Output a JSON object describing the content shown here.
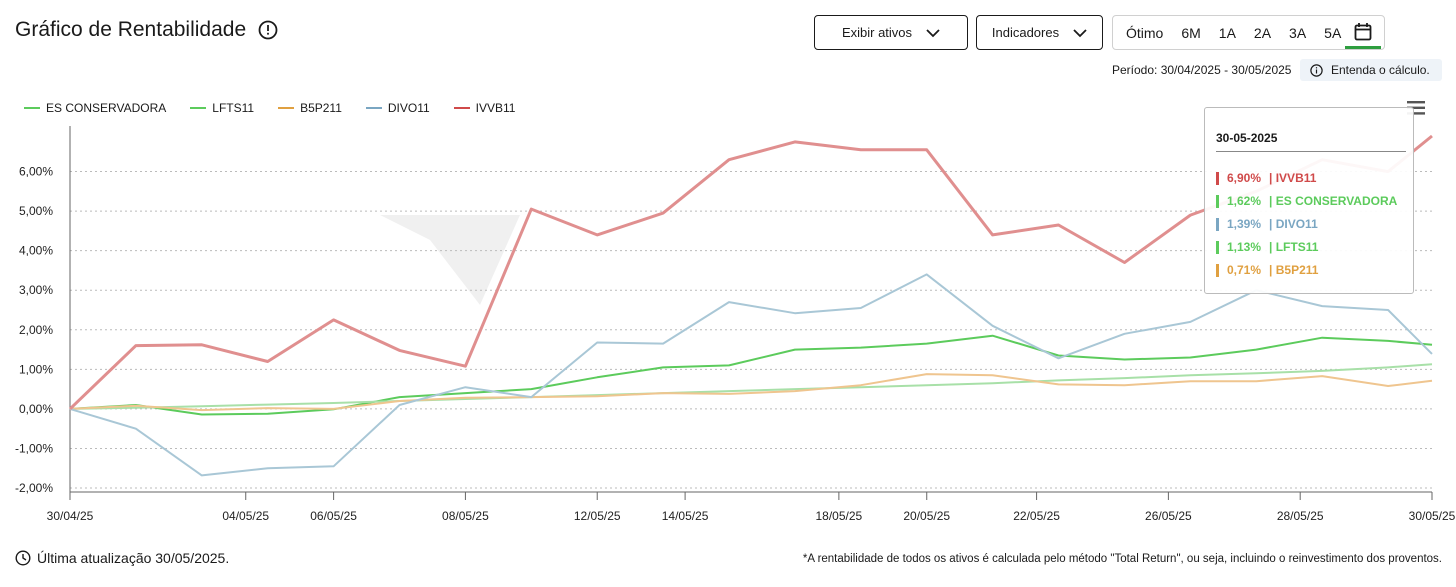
{
  "header": {
    "title": "Gráfico de Rentabilidade",
    "btn_assets": "Exibir ativos",
    "btn_indicators": "Indicadores",
    "periods": [
      "Ótimo",
      "6M",
      "1A",
      "2A",
      "3A",
      "5A"
    ],
    "period_label": "Período: 30/04/2025 - 30/05/2025",
    "explain": "Entenda o cálculo."
  },
  "footer": {
    "updated": "Última atualização 30/05/2025.",
    "note": "*A rentabilidade de todos os ativos é calculada pelo método \"Total Return\", ou seja, incluindo o reinvestimento dos proventos."
  },
  "tooltip": {
    "date": "30-05-2025",
    "rows": [
      {
        "value": "6,90%",
        "name": "| IVVB11",
        "color": "#d04a4a"
      },
      {
        "value": "1,62%",
        "name": "| ES CONSERVADORA",
        "color": "#5ccb5c"
      },
      {
        "value": "1,39%",
        "name": "| DIVO11",
        "color": "#7aa6c2"
      },
      {
        "value": "1,13%",
        "name": "| LFTS11",
        "color": "#5ccb5c"
      },
      {
        "value": "0,71%",
        "name": "| B5P211",
        "color": "#e0a040"
      }
    ]
  },
  "chart_data": {
    "type": "line",
    "ylim": [
      -2.1,
      7.0
    ],
    "y_ticks": [
      -2,
      -1,
      0,
      1,
      2,
      3,
      4,
      5,
      6
    ],
    "y_tick_labels": [
      "-2,00%",
      "-1,00%",
      "0,00%",
      "1,00%",
      "2,00%",
      "3,00%",
      "4,00%",
      "5,00%",
      "6,00%"
    ],
    "x_tick_labels": [
      "30/04/25",
      "04/05/25",
      "06/05/25",
      "08/05/25",
      "12/05/25",
      "14/05/25",
      "18/05/25",
      "20/05/25",
      "22/05/25",
      "26/05/25",
      "28/05/25",
      "30/05/25"
    ],
    "x_tick_days": [
      0,
      4,
      6,
      9,
      12,
      14,
      17.5,
      19.5,
      22,
      25,
      28,
      31
    ],
    "x_days": [
      0,
      1.5,
      3,
      4.5,
      6,
      7.5,
      9,
      10.5,
      12,
      13.5,
      15,
      16.5,
      18,
      19.5,
      21,
      22.5,
      24,
      25.5,
      27,
      28.5,
      30,
      31
    ],
    "series": [
      {
        "name": "ES CONSERVADORA",
        "color": "#5ccb5c",
        "width": 2,
        "values": [
          0,
          0.1,
          -0.14,
          -0.12,
          -0.01,
          0.3,
          0.4,
          0.5,
          0.8,
          1.05,
          1.1,
          1.5,
          1.55,
          1.65,
          1.85,
          1.35,
          1.25,
          1.3,
          1.5,
          1.8,
          1.72,
          1.62
        ]
      },
      {
        "name": "LFTS11",
        "color": "#a8e0a8",
        "width": 2,
        "values": [
          0,
          0.03,
          0.07,
          0.11,
          0.15,
          0.2,
          0.25,
          0.3,
          0.35,
          0.4,
          0.45,
          0.5,
          0.55,
          0.6,
          0.65,
          0.72,
          0.78,
          0.85,
          0.9,
          0.96,
          1.05,
          1.13
        ]
      },
      {
        "name": "B5P211",
        "color": "#efc58f",
        "width": 2,
        "values": [
          0,
          0.08,
          -0.03,
          0.02,
          0.0,
          0.2,
          0.28,
          0.3,
          0.32,
          0.4,
          0.38,
          0.45,
          0.6,
          0.88,
          0.85,
          0.62,
          0.6,
          0.7,
          0.7,
          0.83,
          0.58,
          0.71
        ]
      },
      {
        "name": "DIVO11",
        "color": "#a9c7d6",
        "width": 2,
        "values": [
          0,
          -0.5,
          -1.68,
          -1.5,
          -1.45,
          0.1,
          0.55,
          0.3,
          1.68,
          1.65,
          2.7,
          2.42,
          2.55,
          3.4,
          2.1,
          1.28,
          1.9,
          2.2,
          3.0,
          2.6,
          2.5,
          1.39
        ]
      },
      {
        "name": "IVVB11",
        "color": "#e08f8f",
        "width": 3,
        "values": [
          0,
          1.6,
          1.62,
          1.2,
          2.25,
          1.48,
          1.08,
          5.05,
          4.4,
          4.95,
          6.3,
          6.75,
          6.55,
          6.55,
          4.4,
          4.65,
          3.7,
          4.9,
          5.5,
          6.3,
          6.0,
          6.9
        ]
      }
    ],
    "legend_colors": [
      "#5ccb5c",
      "#5ccb5c",
      "#e0a040",
      "#7aa6c2",
      "#d04a4a"
    ]
  }
}
